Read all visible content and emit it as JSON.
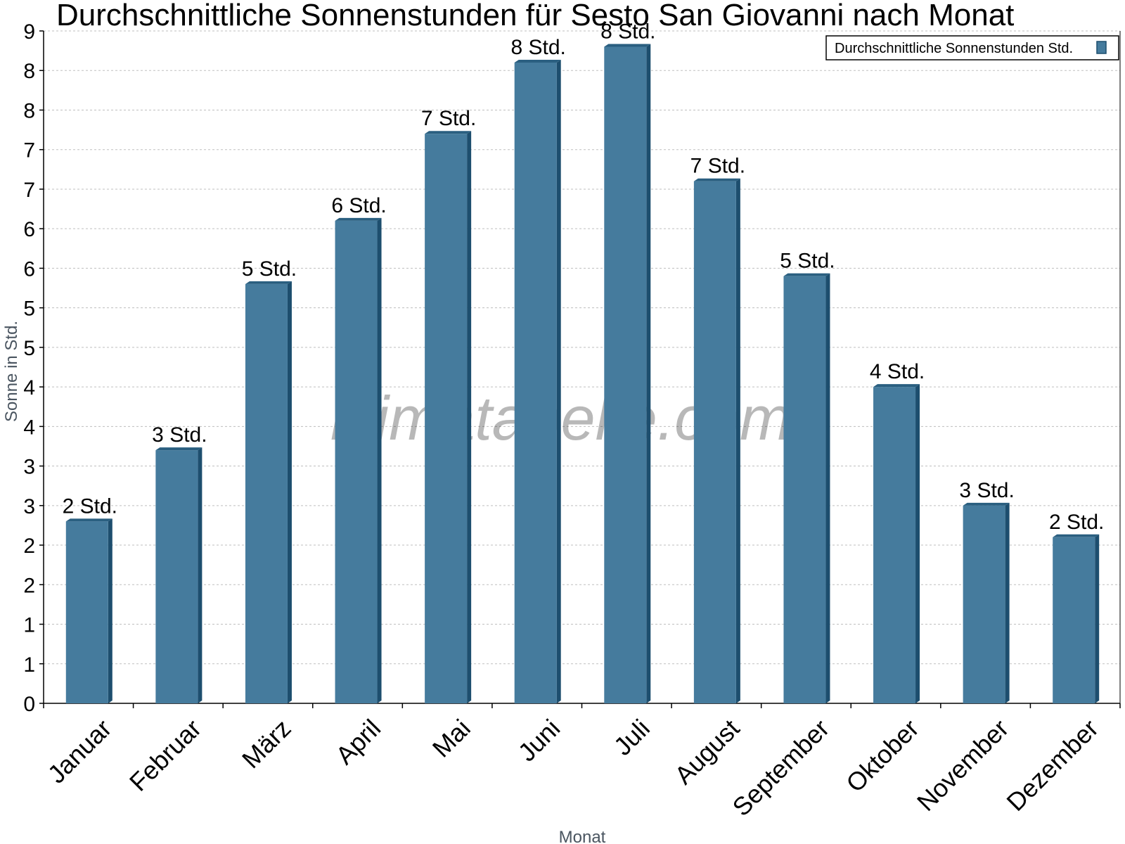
{
  "chart_data": {
    "type": "bar",
    "title": "Durchschnittliche Sonnenstunden für Sesto San Giovanni nach Monat",
    "xlabel": "Monat",
    "ylabel": "Sonne in Std.",
    "categories": [
      "Januar",
      "Februar",
      "März",
      "April",
      "Mai",
      "Juni",
      "Juli",
      "August",
      "September",
      "Oktober",
      "November",
      "Dezember"
    ],
    "series": [
      {
        "name": "Durchschnittliche Sonnenstunden Std.",
        "values": [
          2.3,
          3.2,
          5.3,
          6.1,
          7.2,
          8.1,
          8.3,
          6.6,
          5.4,
          4.0,
          2.5,
          2.1
        ],
        "labels": [
          "2 Std.",
          "3 Std.",
          "5 Std.",
          "6 Std.",
          "7 Std.",
          "8 Std.",
          "8 Std.",
          "7 Std.",
          "5 Std.",
          "4 Std.",
          "3 Std.",
          "2 Std."
        ]
      }
    ],
    "ylim": [
      0,
      8.5
    ],
    "yticks": [
      0,
      0.5,
      1,
      1.5,
      2,
      2.5,
      3,
      3.5,
      4,
      4.5,
      5,
      5.5,
      6,
      6.5,
      7,
      7.5,
      8,
      8.5
    ],
    "ytick_labels": [
      "0",
      "1",
      "1",
      "2",
      "2",
      "3",
      "3",
      "4",
      "4",
      "5",
      "5",
      "6",
      "6",
      "7",
      "7",
      "8",
      "8",
      "9"
    ],
    "grid": true,
    "legend_position": "top-right",
    "watermark": "klimatabelle.com",
    "colors": {
      "bar_front": "#457b9d",
      "bar_side": "#1d4e6e",
      "bar_top": "#2a5f80",
      "grid": "#bfbfbf",
      "axis": "#000000"
    }
  }
}
